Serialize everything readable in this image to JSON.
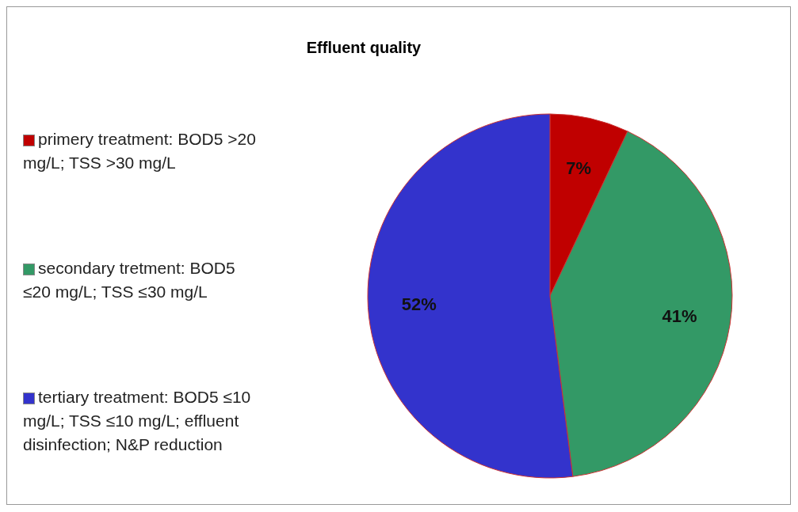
{
  "chart_data": {
    "type": "pie",
    "title": "Effluent quality",
    "categories": [
      "primery treatment: BOD5 >20 mg/L; TSS >30 mg/L",
      "secondary tretment: BOD5 ≤20 mg/L; TSS ≤30 mg/L",
      "tertiary treatment: BOD5 ≤10 mg/L; TSS ≤10 mg/L; effluent disinfection; N&P reduction"
    ],
    "values": [
      7,
      41,
      52
    ],
    "colors": [
      "#c00000",
      "#339966",
      "#3333cc"
    ],
    "value_labels": [
      "7%",
      "41%",
      "52%"
    ],
    "legend": "left"
  }
}
